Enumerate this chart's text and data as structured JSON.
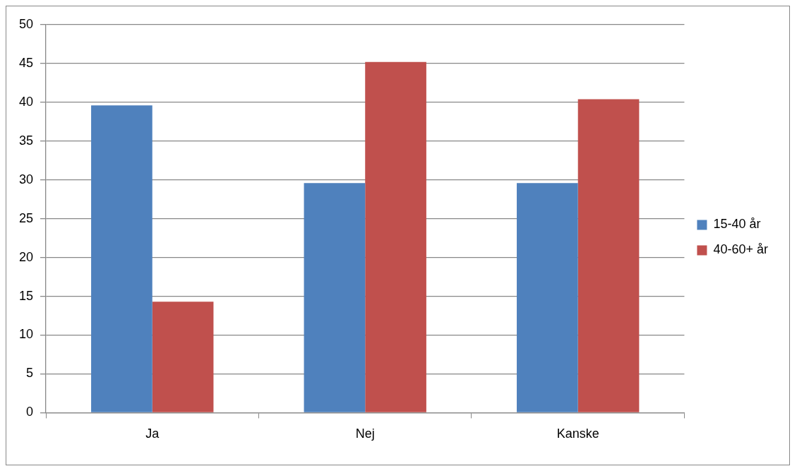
{
  "chart_data": {
    "type": "bar",
    "categories": [
      "Ja",
      "Nej",
      "Kanske"
    ],
    "series": [
      {
        "name": "15-40 år",
        "color": "#4f81bd",
        "values": [
          39.6,
          29.6,
          29.6
        ]
      },
      {
        "name": "40-60+ år",
        "color": "#c0504d",
        "values": [
          14.3,
          45.2,
          40.4
        ]
      }
    ],
    "ylim": [
      0,
      50
    ],
    "yticks": [
      0,
      5,
      10,
      15,
      20,
      25,
      30,
      35,
      40,
      45,
      50
    ],
    "grid": "y",
    "legend": "right"
  }
}
